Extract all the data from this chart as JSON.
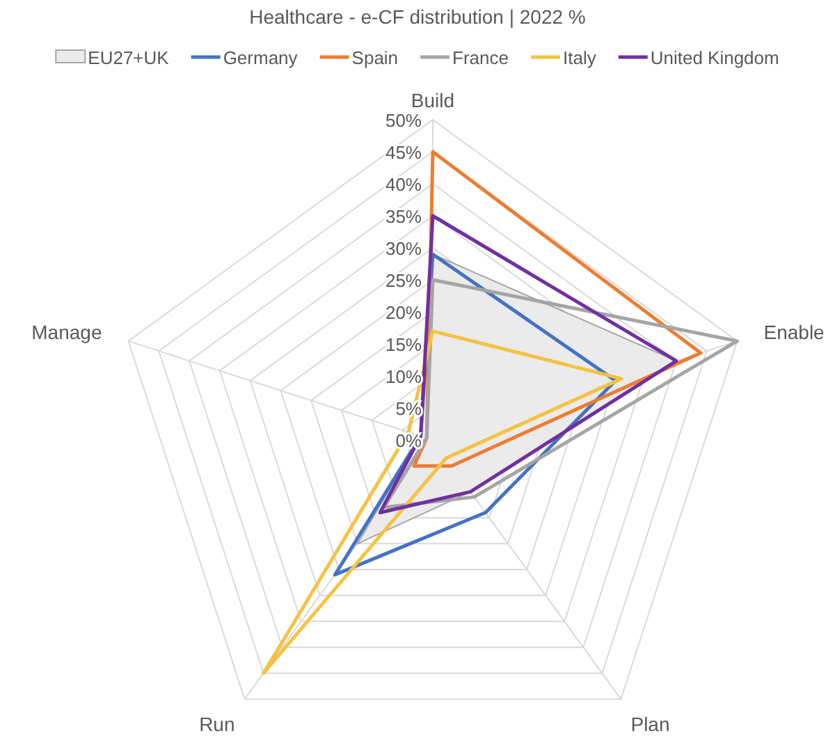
{
  "chart_data": {
    "type": "radar",
    "title": "Healthcare - e-CF distribution | 2022 %",
    "categories": [
      "Build",
      "Enable",
      "Plan",
      "Run",
      "Manage"
    ],
    "series": [
      {
        "name": "EU27+UK",
        "type": "area",
        "color": "#a6a6a6",
        "values": [
          29,
          40,
          10,
          20,
          2
        ]
      },
      {
        "name": "Germany",
        "color": "#4472c4",
        "values": [
          29,
          30,
          14,
          26,
          2
        ]
      },
      {
        "name": "Spain",
        "color": "#ed7d31",
        "values": [
          45,
          44,
          5,
          5,
          1
        ]
      },
      {
        "name": "France",
        "color": "#a5a5a5",
        "values": [
          25,
          50,
          11,
          13,
          1
        ]
      },
      {
        "name": "Italy",
        "color": "#f5c242",
        "values": [
          17,
          31,
          3.5,
          45,
          4
        ]
      },
      {
        "name": "United Kingdom",
        "color": "#7030a0",
        "values": [
          35,
          40,
          10,
          14,
          2
        ]
      }
    ],
    "ylim": [
      0,
      50
    ],
    "yticks": [
      {
        "value": 0,
        "label": "0%"
      },
      {
        "value": 5,
        "label": "5%"
      },
      {
        "value": 10,
        "label": "10%"
      },
      {
        "value": 15,
        "label": "15%"
      },
      {
        "value": 20,
        "label": "20%"
      },
      {
        "value": 25,
        "label": "25%"
      },
      {
        "value": 30,
        "label": "30%"
      },
      {
        "value": 35,
        "label": "35%"
      },
      {
        "value": 40,
        "label": "40%"
      },
      {
        "value": 45,
        "label": "45%"
      },
      {
        "value": 50,
        "label": "50%"
      }
    ],
    "grid": true,
    "legend": "top"
  }
}
